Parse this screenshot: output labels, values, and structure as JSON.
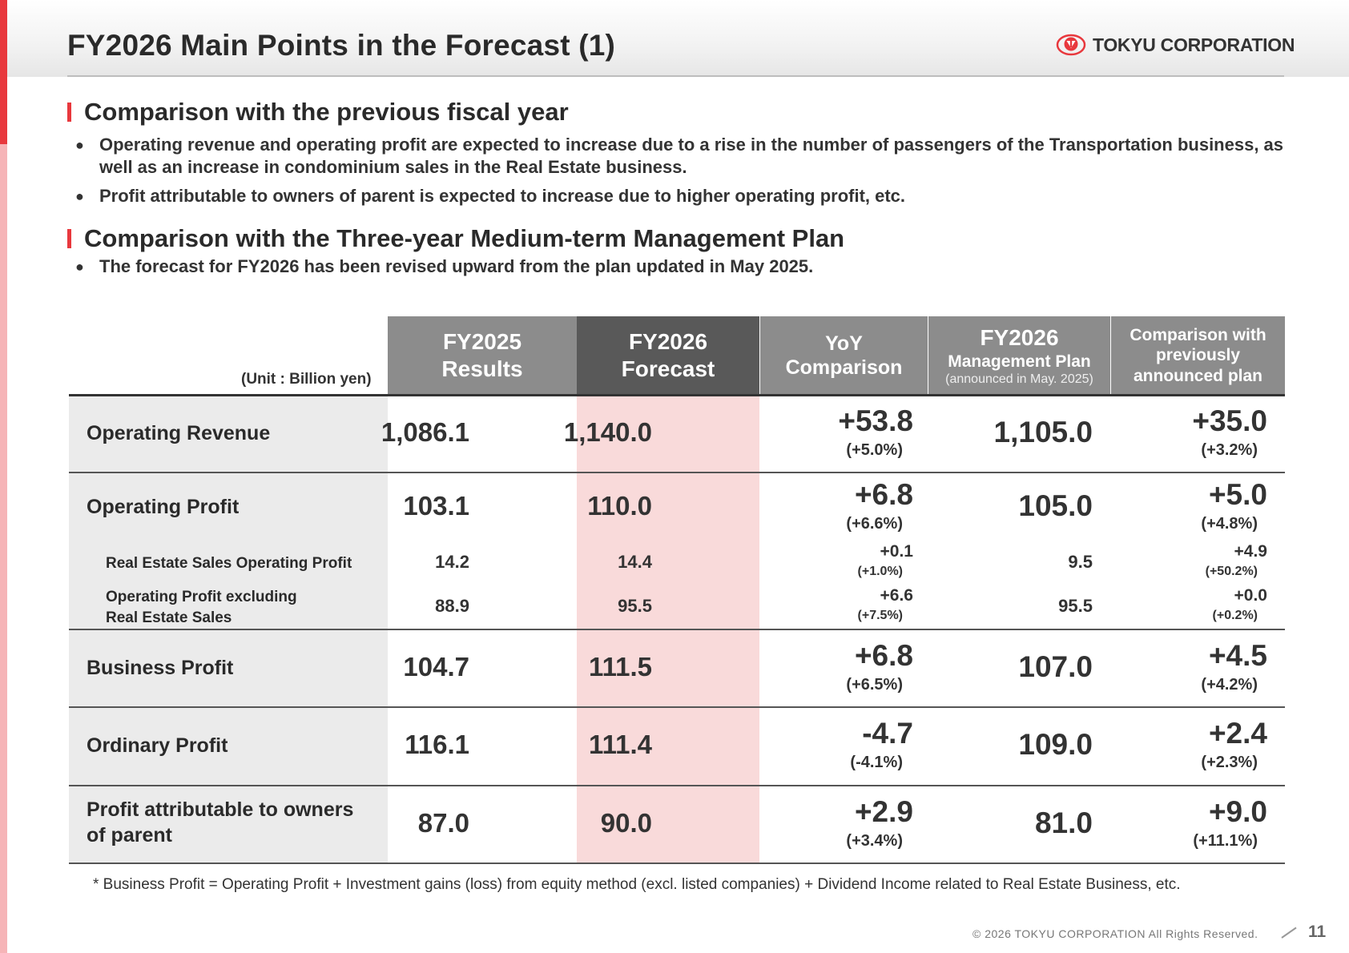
{
  "header": {
    "title": "FY2026 Main Points in the Forecast (1)",
    "logo_text": "TOKYU CORPORATION"
  },
  "sections": [
    {
      "heading": "Comparison with the previous fiscal year",
      "bullets": [
        "Operating revenue and operating profit are expected to increase due to a rise in the number of passengers of the Transportation business, as well as an increase in condominium sales in the Real Estate business.",
        "Profit attributable to owners of parent is expected to increase due to higher operating profit, etc."
      ]
    },
    {
      "heading": "Comparison with the Three-year Medium-term Management Plan",
      "bullets": [
        "The forecast for FY2026 has been revised upward from the plan updated in May 2025."
      ]
    }
  ],
  "table": {
    "unit": "(Unit : Billion yen)",
    "columns": {
      "fy2025": [
        "FY2025",
        "Results"
      ],
      "fy2026": [
        "FY2026",
        "Forecast"
      ],
      "yoy": [
        "YoY",
        "Comparison"
      ],
      "plan": [
        "FY2026",
        "Management Plan",
        "(announced in May. 2025)"
      ],
      "comparison": [
        "Comparison with",
        "previously",
        "announced plan"
      ]
    },
    "rows": [
      {
        "label": "Operating Revenue",
        "fy2025": "1,086.1",
        "fy2026": "1,140.0",
        "yoy": "+53.8",
        "yoy_pct": "(+5.0%)",
        "plan": "1,105.0",
        "comp": "+35.0",
        "comp_pct": "(+3.2%)"
      },
      {
        "label": "Operating Profit",
        "fy2025": "103.1",
        "fy2026": "110.0",
        "yoy": "+6.8",
        "yoy_pct": "(+6.6%)",
        "plan": "105.0",
        "comp": "+5.0",
        "comp_pct": "(+4.8%)"
      },
      {
        "label": "Real Estate Sales Operating Profit",
        "fy2025": "14.2",
        "fy2026": "14.4",
        "yoy": "+0.1",
        "yoy_pct": "(+1.0%)",
        "plan": "9.5",
        "comp": "+4.9",
        "comp_pct": "(+50.2%)"
      },
      {
        "label_line1": "Operating Profit excluding",
        "label_line2": "Real Estate Sales",
        "fy2025": "88.9",
        "fy2026": "95.5",
        "yoy": "+6.6",
        "yoy_pct": "(+7.5%)",
        "plan": "95.5",
        "comp": "+0.0",
        "comp_pct": "(+0.2%)"
      },
      {
        "label": "Business Profit",
        "fy2025": "104.7",
        "fy2026": "111.5",
        "yoy": "+6.8",
        "yoy_pct": "(+6.5%)",
        "plan": "107.0",
        "comp": "+4.5",
        "comp_pct": "(+4.2%)"
      },
      {
        "label": "Ordinary Profit",
        "fy2025": "116.1",
        "fy2026": "111.4",
        "yoy": "-4.7",
        "yoy_pct": "(-4.1%)",
        "plan": "109.0",
        "comp": "+2.4",
        "comp_pct": "(+2.3%)"
      },
      {
        "label_line1": "Profit attributable to owners",
        "label_line2": "of parent",
        "fy2025": "87.0",
        "fy2026": "90.0",
        "yoy": "+2.9",
        "yoy_pct": "(+3.4%)",
        "plan": "81.0",
        "comp": "+9.0",
        "comp_pct": "(+11.1%)"
      }
    ]
  },
  "footnote": "* Business Profit  = Operating Profit + Investment gains (loss) from equity method (excl. listed companies) + Dividend Income related to Real Estate Business, etc.",
  "footer": {
    "copyright": "© 2026 TOKYU CORPORATION All Rights Reserved.",
    "page_number": "11"
  },
  "colors": {
    "accent": "#e8383d",
    "header_gray": "#8c8c8c",
    "header_dark": "#595959",
    "forecast_pink": "#f9dada",
    "label_gray": "#ebebeb"
  }
}
